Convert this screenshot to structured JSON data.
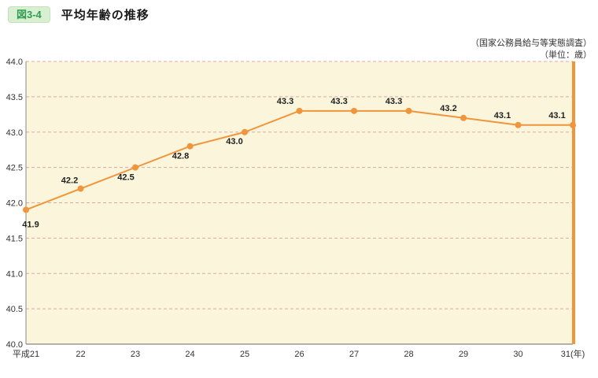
{
  "header": {
    "badge": "図3-4",
    "title": "平均年齢の推移",
    "source_note": "（国家公務員給与等実態調査）",
    "unit_note": "（単位：歳）"
  },
  "chart_data": {
    "type": "line",
    "title": "平均年齢の推移",
    "categories": [
      "平成21",
      "22",
      "23",
      "24",
      "25",
      "26",
      "27",
      "28",
      "29",
      "30",
      "31(年)"
    ],
    "values": [
      41.9,
      42.2,
      42.5,
      42.8,
      43.0,
      43.3,
      43.3,
      43.3,
      43.2,
      43.1,
      43.1
    ],
    "ylim": [
      40.0,
      44.0
    ],
    "ytick_step": 0.5,
    "xlabel": "",
    "ylabel": "歳",
    "grid": "dashed-horizontal",
    "legend": "none",
    "colors": {
      "line": "#f0953b",
      "point": "#f0953b",
      "plot_bg": "#fbf5dc",
      "grid": "#e0a8a2",
      "axis": "#8a8a8a",
      "label_text": "#222222",
      "tick_text": "#333333",
      "right_border": "#f0953b"
    }
  }
}
